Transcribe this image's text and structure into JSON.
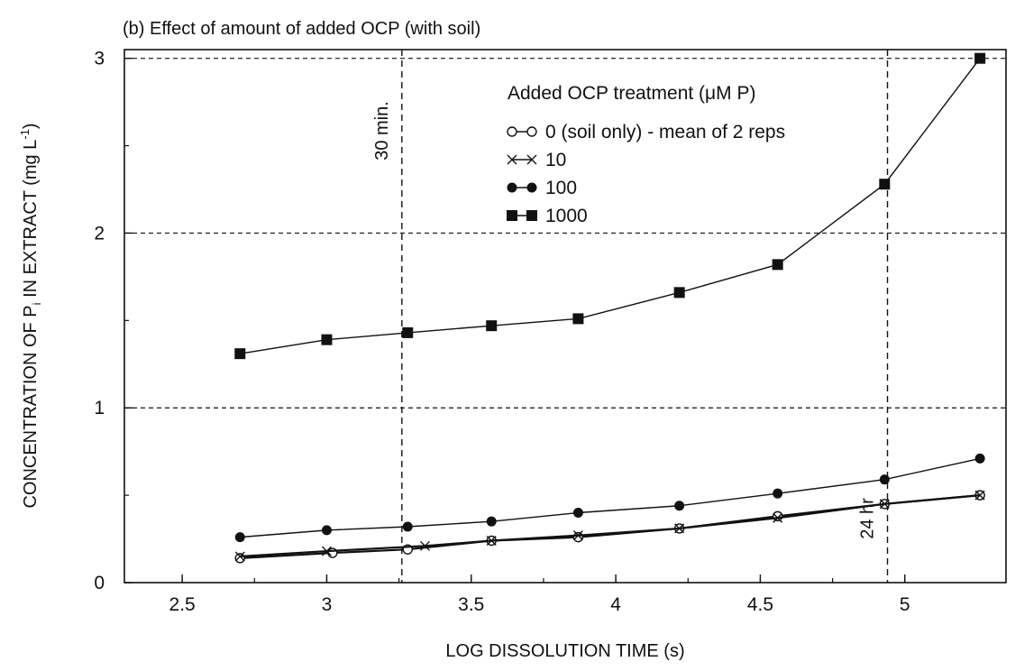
{
  "chart_data": {
    "type": "line",
    "title": "(b) Effect of amount of added OCP (with soil)",
    "xlabel": "LOG DISSOLUTION TIME (s)",
    "ylabel_parts": [
      "CONCENTRATION OF P",
      "i",
      " IN EXTRACT  (mg L",
      "-1",
      ")"
    ],
    "xlim": [
      2.3,
      5.35
    ],
    "ylim": [
      0,
      3.05
    ],
    "xticks": [
      2.5,
      3,
      3.5,
      4,
      4.5,
      5
    ],
    "xtick_labels": [
      "2.5",
      "3",
      "3.5",
      "4",
      "4.5",
      "5"
    ],
    "yticks": [
      0,
      1,
      2,
      3
    ],
    "ytick_labels": [
      "0",
      "1",
      "2",
      "3"
    ],
    "grid": "horizontal dashed at 1, 2, 3",
    "legend_title": "Added OCP treatment (μM P)",
    "legend_position": "upper-middle",
    "series": [
      {
        "name": "0 (soil only) - mean of 2 reps",
        "marker": "open-circle",
        "x": [
          2.7,
          3.02,
          3.28,
          3.57,
          3.87,
          4.22,
          4.56,
          4.93,
          5.26
        ],
        "y": [
          0.14,
          0.17,
          0.19,
          0.24,
          0.26,
          0.31,
          0.38,
          0.45,
          0.5
        ]
      },
      {
        "name": "10",
        "marker": "cross",
        "x": [
          2.7,
          3.0,
          3.34,
          3.57,
          3.87,
          4.22,
          4.56,
          4.93,
          5.26
        ],
        "y": [
          0.15,
          0.18,
          0.21,
          0.24,
          0.27,
          0.31,
          0.37,
          0.45,
          0.5
        ]
      },
      {
        "name": "100",
        "marker": "filled-circle",
        "x": [
          2.7,
          3.0,
          3.28,
          3.57,
          3.87,
          4.22,
          4.56,
          4.93,
          5.26
        ],
        "y": [
          0.26,
          0.3,
          0.32,
          0.35,
          0.4,
          0.44,
          0.51,
          0.59,
          0.71
        ]
      },
      {
        "name": "1000",
        "marker": "filled-square",
        "x": [
          2.7,
          3.0,
          3.28,
          3.57,
          3.87,
          4.22,
          4.56,
          4.93,
          5.26
        ],
        "y": [
          1.31,
          1.39,
          1.43,
          1.47,
          1.51,
          1.66,
          1.82,
          2.28,
          3.0
        ]
      }
    ],
    "annotations": [
      {
        "text": "30 min.",
        "x": 3.26
      },
      {
        "text": "24 hr",
        "x": 4.94
      }
    ]
  }
}
